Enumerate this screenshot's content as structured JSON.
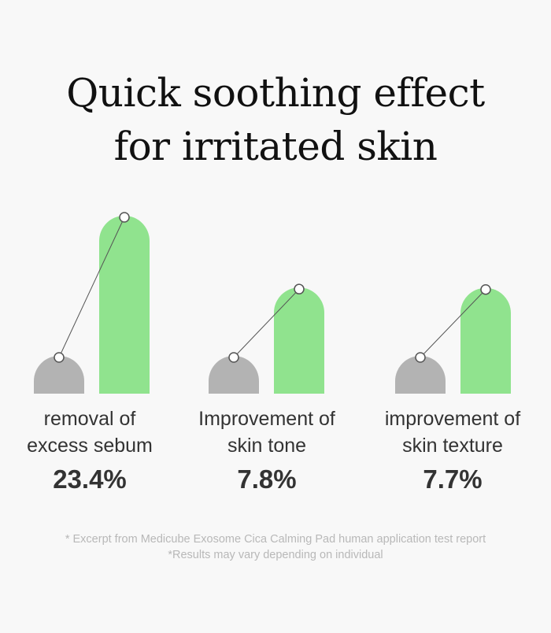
{
  "title": {
    "line1": "Quick soothing effect",
    "line2": "for irritated skin"
  },
  "colors": {
    "before_bar": "#b3b3b3",
    "after_bar": "#90e38e",
    "connector": "#555555",
    "text": "#333333",
    "footnote": "#b8b8b8"
  },
  "chart_data": {
    "type": "bar",
    "categories": [
      {
        "line1": "removal of",
        "line2": "excess sebum"
      },
      {
        "line1": "Improvement of",
        "line2": "skin tone"
      },
      {
        "line1": "improvement of",
        "line2": "skin texture"
      }
    ],
    "value_labels": [
      "23.4%",
      "7.8%",
      "7.7%"
    ],
    "values": [
      23.4,
      7.8,
      7.7
    ]
  },
  "footnote": {
    "line1": "* Excerpt from Medicube Exosome Cica Calming Pad human application test report",
    "line2": "*Results may vary depending on individual"
  }
}
